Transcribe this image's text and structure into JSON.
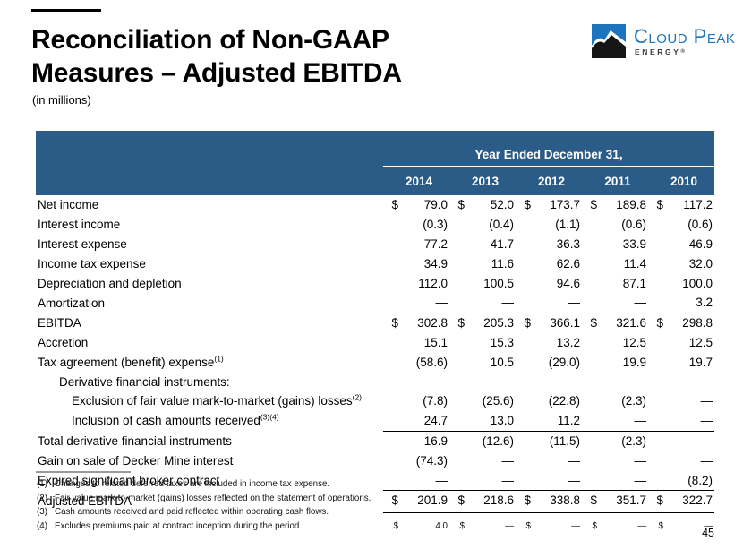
{
  "page": {
    "number": "45"
  },
  "header": {
    "title_line1": "Reconciliation of Non-GAAP",
    "title_line2": "Measures – Adjusted EBITDA",
    "subtitle": "(in millions)",
    "logo": {
      "name": "Cloud Peak",
      "sub": "ENERGY",
      "reg": "®"
    }
  },
  "colors": {
    "header_bg": "#2b5c88",
    "logo_blue": "#1c75bc"
  },
  "table": {
    "header": {
      "title": "Year Ended December 31,",
      "years": [
        "2014",
        "2013",
        "2012",
        "2011",
        "2010"
      ]
    },
    "rows": [
      {
        "label": "Net income",
        "values": [
          "$",
          "79.0",
          "$",
          "52.0",
          "$",
          "173.7",
          "$",
          "189.8",
          "$",
          "117.2"
        ]
      },
      {
        "label": "Interest income",
        "values": [
          "",
          "(0.3)",
          "",
          "(0.4)",
          "",
          "(1.1)",
          "",
          "(0.6)",
          "",
          "(0.6)"
        ]
      },
      {
        "label": "Interest expense",
        "values": [
          "",
          "77.2",
          "",
          "41.7",
          "",
          "36.3",
          "",
          "33.9",
          "",
          "46.9"
        ]
      },
      {
        "label": "Income tax expense",
        "values": [
          "",
          "34.9",
          "",
          "11.6",
          "",
          "62.6",
          "",
          "11.4",
          "",
          "32.0"
        ]
      },
      {
        "label": "Depreciation and depletion",
        "values": [
          "",
          "112.0",
          "",
          "100.5",
          "",
          "94.6",
          "",
          "87.1",
          "",
          "100.0"
        ]
      },
      {
        "label": "Amortization",
        "values": [
          "",
          "—",
          "",
          "—",
          "",
          "—",
          "",
          "—",
          "",
          "3.2"
        ],
        "rule_below": true
      },
      {
        "label": "EBITDA",
        "values": [
          "$",
          "302.8",
          "$",
          "205.3",
          "$",
          "366.1",
          "$",
          "321.6",
          "$",
          "298.8"
        ]
      },
      {
        "label": "Accretion",
        "values": [
          "",
          "15.1",
          "",
          "15.3",
          "",
          "13.2",
          "",
          "12.5",
          "",
          "12.5"
        ]
      },
      {
        "label": "Tax agreement (benefit) expense",
        "sup": "(1)",
        "values": [
          "",
          "(58.6)",
          "",
          "10.5",
          "",
          "(29.0)",
          "",
          "19.9",
          "",
          "19.7"
        ]
      },
      {
        "label": "Derivative financial instruments:",
        "indent": 1
      },
      {
        "label": "Exclusion of fair value mark-to-market (gains) losses",
        "sup": "(2)",
        "indent": 2,
        "values": [
          "",
          "(7.8)",
          "",
          "(25.6)",
          "",
          "(22.8)",
          "",
          "(2.3)",
          "",
          "—"
        ]
      },
      {
        "label": "Inclusion of cash amounts received",
        "sup": "(3)(4)",
        "indent": 2,
        "values": [
          "",
          "24.7",
          "",
          "13.0",
          "",
          "11.2",
          "",
          "—",
          "",
          "—"
        ],
        "rule_below": true
      },
      {
        "label": "Total derivative financial instruments",
        "values": [
          "",
          "16.9",
          "",
          "(12.6)",
          "",
          "(11.5)",
          "",
          "(2.3)",
          "",
          "—"
        ]
      },
      {
        "label": "Gain on sale of Decker Mine interest",
        "values": [
          "",
          "(74.3)",
          "",
          "—",
          "",
          "—",
          "",
          "—",
          "",
          "—"
        ]
      },
      {
        "label": "Expired significant broker contract",
        "values": [
          "",
          "—",
          "",
          "—",
          "",
          "—",
          "",
          "—",
          "",
          "(8.2)"
        ],
        "rule_below": true
      },
      {
        "label": "Adjusted EBITDA",
        "values": [
          "$",
          "201.9",
          "$",
          "218.6",
          "$",
          "338.8",
          "$",
          "351.7",
          "$",
          "322.7"
        ],
        "double_below": true
      }
    ]
  },
  "footnotes": [
    {
      "num": "(1)",
      "text": "Changes to related deferred taxes are included in income tax expense."
    },
    {
      "num": "(2)",
      "text": "Fair value mark-to-market (gains) losses reflected on the statement of operations."
    },
    {
      "num": "(3)",
      "text": "Cash amounts received and paid reflected within operating cash flows."
    },
    {
      "num": "(4)",
      "text": "Excludes premiums paid at contract inception during the period",
      "values": [
        "$",
        "4.0",
        "$",
        "—",
        "$",
        "—",
        "$",
        "—",
        "$",
        "—"
      ]
    }
  ]
}
